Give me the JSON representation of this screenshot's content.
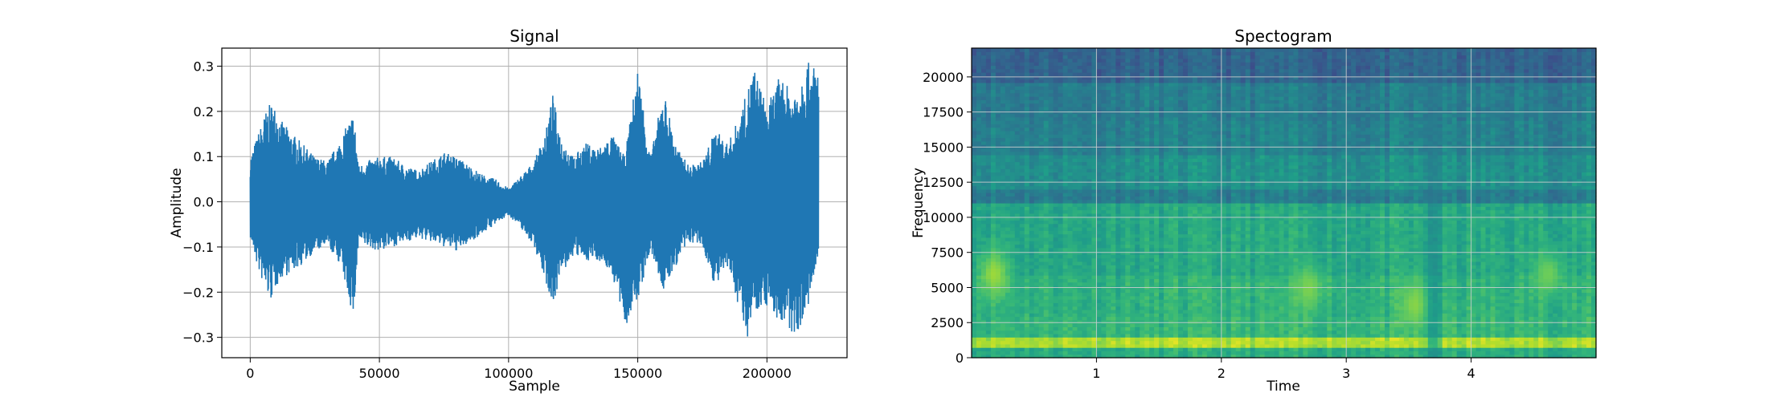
{
  "chart_data": [
    {
      "type": "line",
      "title": "Signal",
      "xlabel": "Sample",
      "ylabel": "Amplitude",
      "xlim": [
        -11000,
        231000
      ],
      "ylim": [
        -0.345,
        0.34
      ],
      "xticks": [
        0,
        50000,
        100000,
        150000,
        200000
      ],
      "xtick_labels": [
        "0",
        "50000",
        "100000",
        "150000",
        "200000"
      ],
      "yticks": [
        -0.3,
        -0.2,
        -0.1,
        0.0,
        0.1,
        0.2,
        0.3
      ],
      "ytick_labels": [
        "−0.3",
        "−0.2",
        "−0.1",
        "0.0",
        "0.1",
        "0.2",
        "0.3"
      ],
      "grid": true,
      "color": "#1f77b4",
      "series": [
        {
          "x": [
            0,
            3000,
            6000,
            8000,
            10000,
            12000,
            15000,
            20000,
            25000,
            30000,
            35000,
            40000,
            42000,
            45000,
            50000,
            55000,
            60000,
            65000,
            70000,
            75000,
            80000,
            85000,
            90000,
            95000,
            100000,
            105000,
            110000,
            115000,
            117000,
            120000,
            125000,
            130000,
            135000,
            140000,
            145000,
            150000,
            155000,
            160000,
            165000,
            170000,
            175000,
            180000,
            185000,
            190000,
            192000,
            195000,
            200000,
            205000,
            210000,
            215000,
            220000
          ],
          "upper": [
            0.1,
            0.15,
            0.2,
            0.22,
            0.21,
            0.18,
            0.16,
            0.13,
            0.1,
            0.09,
            0.14,
            0.2,
            0.08,
            0.09,
            0.1,
            0.1,
            0.08,
            0.07,
            0.09,
            0.11,
            0.1,
            0.08,
            0.06,
            0.05,
            0.03,
            0.06,
            0.09,
            0.17,
            0.24,
            0.15,
            0.1,
            0.13,
            0.12,
            0.15,
            0.1,
            0.3,
            0.1,
            0.25,
            0.12,
            0.08,
            0.09,
            0.16,
            0.13,
            0.2,
            0.24,
            0.3,
            0.21,
            0.28,
            0.24,
            0.31,
            0.3
          ],
          "lower": [
            -0.08,
            -0.15,
            -0.2,
            -0.22,
            -0.19,
            -0.17,
            -0.16,
            -0.14,
            -0.11,
            -0.1,
            -0.14,
            -0.26,
            -0.09,
            -0.1,
            -0.11,
            -0.1,
            -0.09,
            -0.08,
            -0.09,
            -0.1,
            -0.11,
            -0.09,
            -0.07,
            -0.05,
            -0.03,
            -0.06,
            -0.1,
            -0.19,
            -0.23,
            -0.17,
            -0.12,
            -0.13,
            -0.13,
            -0.16,
            -0.28,
            -0.22,
            -0.11,
            -0.2,
            -0.14,
            -0.09,
            -0.1,
            -0.19,
            -0.15,
            -0.25,
            -0.31,
            -0.24,
            -0.23,
            -0.27,
            -0.3,
            -0.26,
            -0.13
          ]
        }
      ]
    },
    {
      "type": "heatmap",
      "title": "Spectogram",
      "xlabel": "Time",
      "ylabel": "Frequency",
      "xlim": [
        0,
        5
      ],
      "ylim": [
        0,
        22050
      ],
      "xticks": [
        1,
        2,
        3,
        4
      ],
      "xtick_labels": [
        "1",
        "2",
        "3",
        "4"
      ],
      "yticks": [
        0,
        2500,
        5000,
        7500,
        10000,
        12500,
        15000,
        17500,
        20000
      ],
      "ytick_labels": [
        "0",
        "2500",
        "5000",
        "7500",
        "10000",
        "12500",
        "15000",
        "17500",
        "20000"
      ],
      "grid": true,
      "colormap": "viridis",
      "bands": [
        {
          "f_from": 0,
          "f_to": 700,
          "level": 0.62
        },
        {
          "f_from": 700,
          "f_to": 1400,
          "level": 0.88
        },
        {
          "f_from": 1400,
          "f_to": 3000,
          "level": 0.66
        },
        {
          "f_from": 3000,
          "f_to": 6000,
          "level": 0.64
        },
        {
          "f_from": 6000,
          "f_to": 11000,
          "level": 0.6
        },
        {
          "f_from": 11000,
          "f_to": 12000,
          "level": 0.42
        },
        {
          "f_from": 12000,
          "f_to": 14500,
          "level": 0.5
        },
        {
          "f_from": 14500,
          "f_to": 17000,
          "level": 0.44
        },
        {
          "f_from": 17000,
          "f_to": 19500,
          "level": 0.42
        },
        {
          "f_from": 19500,
          "f_to": 22050,
          "level": 0.32
        }
      ],
      "hotspots": [
        {
          "t": 0.18,
          "f": 6000,
          "level": 0.85
        },
        {
          "t": 2.7,
          "f": 5000,
          "level": 0.8
        },
        {
          "t": 3.55,
          "f": 3800,
          "level": 0.82
        },
        {
          "t": 4.62,
          "f": 6000,
          "level": 0.78
        }
      ],
      "dark_column": {
        "t": 3.7,
        "level": 0.4
      }
    }
  ]
}
